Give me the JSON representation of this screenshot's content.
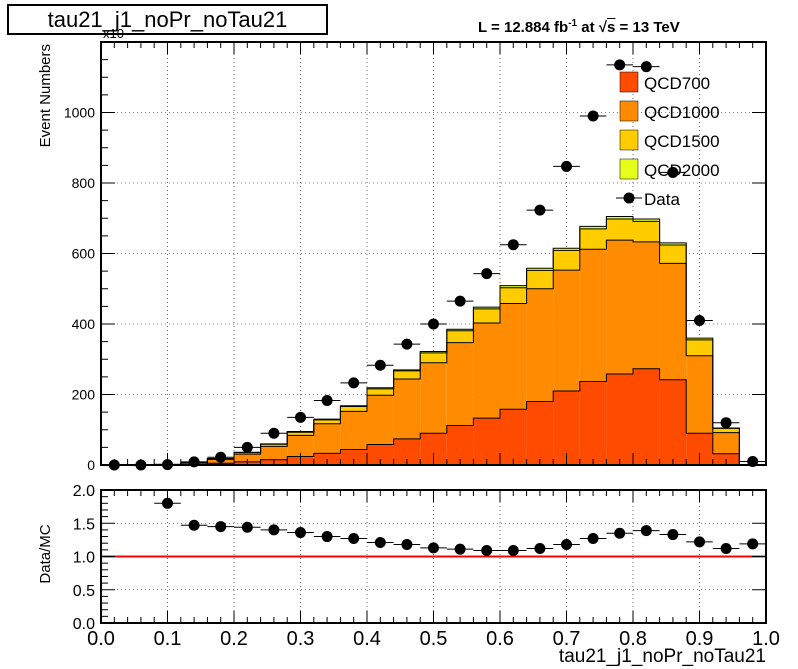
{
  "title": "tau21_j1_noPr_noTau21",
  "lumi": {
    "prefix": "L = 12.884 fb",
    "exponent": "-1",
    "at": "at",
    "s": "s",
    "energy": "= 13 TeV"
  },
  "chart_data": [
    {
      "type": "bar",
      "stacked": true,
      "xlabel": "tau21_j1_noPr_noTau21",
      "ylabel": "Event Numbers",
      "exponent_label": "x10",
      "xlim": [
        0.0,
        1.0
      ],
      "ylim": [
        0,
        1200
      ],
      "grid": true,
      "legend_position": "top-right",
      "bin_edges": [
        0.0,
        0.04,
        0.08,
        0.12,
        0.16,
        0.2,
        0.24,
        0.28,
        0.32,
        0.36,
        0.4,
        0.44,
        0.48,
        0.52,
        0.56,
        0.6,
        0.64,
        0.68,
        0.72,
        0.76,
        0.8,
        0.84,
        0.88,
        0.92,
        0.96,
        1.0
      ],
      "yticks": [
        0,
        200,
        400,
        600,
        800,
        1000
      ],
      "xticks": [
        "0.0",
        "0.1",
        "0.2",
        "0.3",
        "0.4",
        "0.5",
        "0.6",
        "0.7",
        "0.8",
        "0.9",
        "1.0"
      ],
      "series": [
        {
          "name": "QCD700",
          "color": "#ff4b00",
          "values": [
            0,
            0,
            0.5,
            2,
            5,
            9,
            15,
            24,
            33,
            44,
            58,
            74,
            90,
            112,
            133,
            158,
            180,
            210,
            237,
            258,
            273,
            242,
            90,
            32,
            0
          ]
        },
        {
          "name": "QCD1000",
          "color": "#ff8c00",
          "values": [
            0,
            0,
            1,
            4,
            11,
            22,
            38,
            60,
            84,
            108,
            140,
            170,
            200,
            235,
            270,
            300,
            320,
            343,
            375,
            380,
            360,
            330,
            220,
            60,
            0
          ]
        },
        {
          "name": "QCD1500",
          "color": "#ffcc00",
          "values": [
            0,
            0,
            0.3,
            1,
            2,
            4,
            6,
            9,
            11,
            14,
            18,
            23,
            28,
            34,
            40,
            45,
            52,
            56,
            58,
            60,
            58,
            52,
            45,
            12,
            0
          ]
        },
        {
          "name": "QCD2000",
          "color": "#e6ff1a",
          "values": [
            0,
            0,
            0,
            0.3,
            0.5,
            1,
            1,
            2,
            2,
            2,
            3,
            3,
            4,
            4,
            5,
            6,
            6,
            6,
            7,
            7,
            7,
            6,
            5,
            1,
            0
          ]
        }
      ],
      "data_points": {
        "name": "Data",
        "x": [
          0.02,
          0.06,
          0.1,
          0.14,
          0.18,
          0.22,
          0.26,
          0.3,
          0.34,
          0.38,
          0.42,
          0.46,
          0.5,
          0.54,
          0.58,
          0.62,
          0.66,
          0.7,
          0.74,
          0.78,
          0.82,
          0.86,
          0.9,
          0.94,
          0.98
        ],
        "y": [
          0,
          0,
          1,
          9,
          22,
          50,
          90,
          135,
          183,
          233,
          283,
          343,
          400,
          465,
          543,
          625,
          723,
          847,
          990,
          1135,
          1130,
          830,
          410,
          120,
          10
        ]
      }
    },
    {
      "type": "scatter",
      "xlabel": "tau21_j1_noPr_noTau21",
      "ylabel": "Data/MC",
      "xlim": [
        0.0,
        1.0
      ],
      "ylim": [
        0.0,
        2.0
      ],
      "grid": true,
      "yticks": [
        "0.0",
        "0.5",
        "1.0",
        "1.5",
        "2.0"
      ],
      "reference_line": {
        "y": 1.0,
        "color": "#ff0000"
      },
      "x": [
        0.1,
        0.14,
        0.18,
        0.22,
        0.26,
        0.3,
        0.34,
        0.38,
        0.42,
        0.46,
        0.5,
        0.54,
        0.58,
        0.62,
        0.66,
        0.7,
        0.74,
        0.78,
        0.82,
        0.86,
        0.9,
        0.94,
        0.98
      ],
      "y": [
        1.8,
        1.47,
        1.45,
        1.44,
        1.4,
        1.36,
        1.3,
        1.27,
        1.21,
        1.18,
        1.13,
        1.11,
        1.09,
        1.09,
        1.12,
        1.18,
        1.27,
        1.35,
        1.39,
        1.33,
        1.22,
        1.12,
        1.19
      ]
    }
  ]
}
